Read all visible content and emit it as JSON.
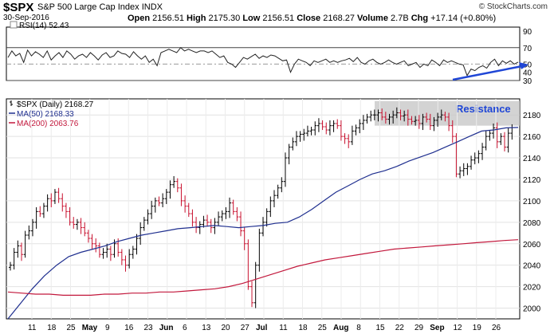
{
  "header": {
    "symbol": "$SPX",
    "name": "S&P 500 Large Cap Index",
    "exchange": "INDX",
    "date": "30-Sep-2016",
    "quote_line": [
      {
        "label": "Open",
        "value": "2156.51"
      },
      {
        "label": "High",
        "value": "2175.30"
      },
      {
        "label": "Low",
        "value": "2156.51"
      },
      {
        "label": "Close",
        "value": "2168.27"
      },
      {
        "label": "Volume",
        "value": "2.7B"
      },
      {
        "label": "Chg",
        "value": "+17.14 (+0.80%)"
      }
    ],
    "copyright": "© StockCharts.com"
  },
  "chart_data": [
    {
      "type": "line",
      "title": "RSI(14) 52.43",
      "ylim": [
        30,
        95
      ],
      "yticks": [
        "90",
        "70",
        "50",
        "30"
      ],
      "yticks_extra_label": "40",
      "reference_lines": [
        70,
        50,
        30
      ],
      "series": [
        {
          "name": "RSI(14)",
          "values": [
            58,
            66,
            60,
            63,
            52,
            67,
            60,
            65,
            62,
            58,
            66,
            55,
            60,
            64,
            58,
            66,
            62,
            56,
            60,
            62,
            58,
            64,
            60,
            55,
            61,
            64,
            58,
            60,
            66,
            63,
            62,
            58,
            65,
            60,
            56,
            60,
            52,
            56,
            48,
            64,
            66,
            68,
            66,
            64,
            70,
            66,
            68,
            66,
            64,
            66,
            66,
            64,
            66,
            62,
            58,
            60,
            52,
            50,
            46,
            52,
            58,
            56,
            59,
            62,
            57,
            60,
            58,
            61,
            60,
            57,
            54,
            55,
            40,
            50,
            56,
            54,
            52,
            48,
            54,
            52,
            54,
            56,
            52,
            54,
            52,
            54,
            55,
            57,
            53,
            58,
            52,
            50,
            54,
            56,
            52,
            50,
            52,
            55,
            52,
            50,
            52,
            54,
            48,
            50,
            52,
            46,
            50,
            48,
            55,
            52,
            48,
            55,
            52,
            54,
            52,
            50,
            49,
            36,
            44,
            42,
            46,
            48,
            45,
            52,
            56,
            48,
            54,
            51,
            54,
            50,
            52.43
          ]
        }
      ],
      "annotations": [
        "rising-trendline"
      ],
      "colors": {
        "line": "#222222",
        "trend": "#1f46d6",
        "ref": "#888888"
      }
    },
    {
      "type": "candlestick",
      "title": "$SPX (Daily) 2168.27",
      "ylim": [
        1990,
        2195
      ],
      "yticks": [
        2000,
        2020,
        2040,
        2060,
        2080,
        2100,
        2120,
        2140,
        2160,
        2180
      ],
      "x_tick_labels": [
        "11",
        "18",
        "25",
        "May",
        "9",
        "16",
        "23",
        "Jun",
        "6",
        "13",
        "20",
        "27",
        "Jul",
        "11",
        "18",
        "25",
        "Aug",
        "8",
        "15",
        "22",
        "29",
        "Sep",
        "12",
        "19",
        "26"
      ],
      "legend": [
        {
          "name": "$SPX (Daily) 2168.27",
          "color": "#000000"
        },
        {
          "name": "MA(50) 2168.33",
          "color": "#1f2f8f"
        },
        {
          "name": "MA(200) 2063.76",
          "color": "#c2183c"
        }
      ],
      "resistance": {
        "label": "Resistance",
        "low": 2170,
        "high": 2193
      },
      "closes": [
        2040,
        2052,
        2058,
        2050,
        2068,
        2072,
        2080,
        2090,
        2088,
        2095,
        2102,
        2100,
        2108,
        2102,
        2095,
        2090,
        2080,
        2078,
        2080,
        2075,
        2070,
        2065,
        2060,
        2058,
        2050,
        2052,
        2055,
        2050,
        2060,
        2052,
        2045,
        2040,
        2050,
        2055,
        2065,
        2075,
        2082,
        2088,
        2095,
        2100,
        2098,
        2102,
        2108,
        2115,
        2118,
        2112,
        2100,
        2095,
        2088,
        2080,
        2075,
        2078,
        2082,
        2080,
        2075,
        2080,
        2085,
        2088,
        2090,
        2098,
        2090,
        2085,
        2072,
        2060,
        2020,
        2005,
        2040,
        2070,
        2080,
        2090,
        2100,
        2105,
        2112,
        2118,
        2140,
        2150,
        2155,
        2160,
        2162,
        2163,
        2165,
        2166,
        2170,
        2172,
        2169,
        2166,
        2170,
        2172,
        2170,
        2160,
        2158,
        2155,
        2165,
        2168,
        2172,
        2175,
        2178,
        2180,
        2180,
        2182,
        2178,
        2176,
        2178,
        2180,
        2182,
        2179,
        2180,
        2176,
        2174,
        2175,
        2172,
        2178,
        2176,
        2170,
        2175,
        2178,
        2180,
        2178,
        2170,
        2160,
        2125,
        2128,
        2130,
        2132,
        2138,
        2140,
        2144,
        2150,
        2160,
        2163,
        2168,
        2155,
        2160,
        2150,
        2163,
        2168.27
      ],
      "ma50": [
        1990,
        2004,
        2018,
        2030,
        2040,
        2048,
        2052,
        2055,
        2058,
        2062,
        2065,
        2068,
        2070,
        2072,
        2074,
        2075,
        2076,
        2077,
        2076,
        2075,
        2076,
        2077,
        2079,
        2080,
        2085,
        2092,
        2100,
        2108,
        2114,
        2120,
        2125,
        2128,
        2132,
        2137,
        2141,
        2145,
        2150,
        2155,
        2160,
        2165,
        2166,
        2168,
        2168.33
      ],
      "ma200": [
        2015,
        2014,
        2013,
        2013,
        2012,
        2012,
        2012,
        2013,
        2013,
        2014,
        2014,
        2015,
        2015,
        2016,
        2017,
        2018,
        2020,
        2023,
        2027,
        2031,
        2035,
        2039,
        2042,
        2045,
        2047,
        2049,
        2051,
        2053,
        2055,
        2056,
        2057,
        2058,
        2059,
        2060,
        2061,
        2062,
        2063,
        2063.76
      ],
      "colors": {
        "up": "#000000",
        "down": "#c8102e",
        "ma50": "#1f2f8f",
        "ma200": "#c2183c",
        "resistance_fill": "#c8c8c8",
        "resistance_text": "#1f46d6"
      }
    }
  ]
}
